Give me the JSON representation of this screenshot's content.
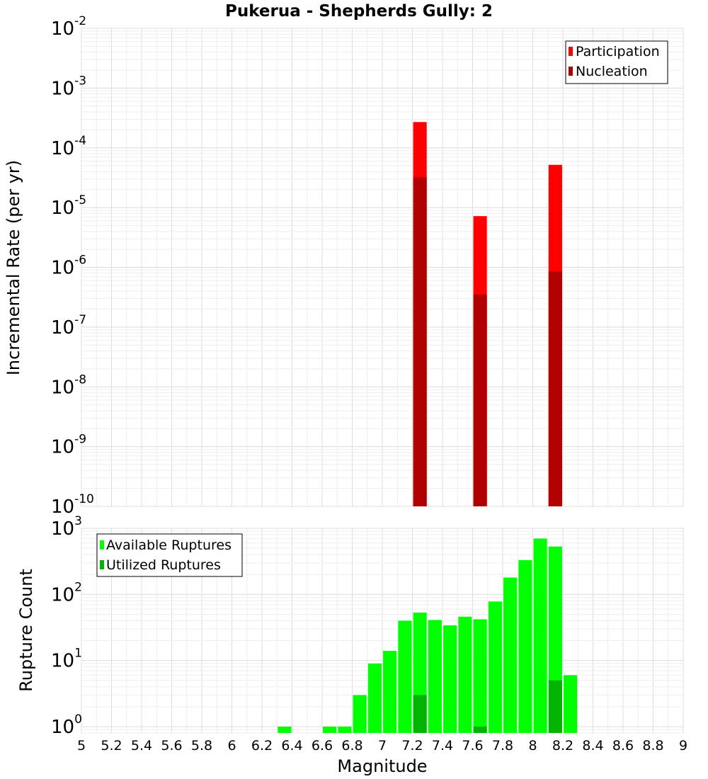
{
  "title": "Pukerua - Shepherds Gully: 2",
  "xlabel": "Magnitude",
  "x_ticks": [
    "5",
    "5.2",
    "5.4",
    "5.6",
    "5.8",
    "6",
    "6.2",
    "6.4",
    "6.6",
    "6.8",
    "7",
    "7.2",
    "7.4",
    "7.6",
    "7.8",
    "8",
    "8.2",
    "8.4",
    "8.6",
    "8.8",
    "9"
  ],
  "chart_data": [
    {
      "type": "bar",
      "ylabel": "Incremental Rate (per yr)",
      "yscale": "log",
      "ylim": [
        1e-10,
        0.01
      ],
      "xlim": [
        5,
        9
      ],
      "y_tick_exponents": [
        "-10",
        "-9",
        "-8",
        "-7",
        "-6",
        "-5",
        "-4",
        "-3",
        "-2"
      ],
      "legend_position": "top-right",
      "bar_width": 0.09,
      "series": [
        {
          "name": "Participation",
          "color": "#ff0000",
          "x": [
            7.25,
            7.65,
            8.15
          ],
          "values": [
            0.00027,
            7.2e-06,
            5.2e-05
          ]
        },
        {
          "name": "Nucleation",
          "color": "#b00000",
          "x": [
            7.25,
            7.65,
            8.15
          ],
          "values": [
            3.2e-05,
            3.5e-07,
            8.5e-07
          ]
        }
      ]
    },
    {
      "type": "bar",
      "ylabel": "Rupture Count",
      "yscale": "log",
      "ylim": [
        0.8,
        1000
      ],
      "xlim": [
        5,
        9
      ],
      "y_tick_exponents": [
        "0",
        "1",
        "2",
        "3"
      ],
      "legend_position": "top-left",
      "bar_width": 0.09,
      "series": [
        {
          "name": "Available Ruptures",
          "color": "#00ff00",
          "x": [
            6.35,
            6.65,
            6.75,
            6.85,
            6.95,
            7.05,
            7.15,
            7.25,
            7.35,
            7.45,
            7.55,
            7.65,
            7.75,
            7.85,
            7.95,
            8.05,
            8.15,
            8.25
          ],
          "values": [
            1,
            1,
            1,
            3,
            9,
            14,
            40,
            53,
            41,
            34,
            46,
            42,
            78,
            180,
            330,
            700,
            530,
            6
          ]
        },
        {
          "name": "Utilized Ruptures",
          "color": "#00b400",
          "x": [
            7.25,
            7.65,
            8.15
          ],
          "values": [
            3,
            1,
            5
          ]
        }
      ]
    }
  ]
}
